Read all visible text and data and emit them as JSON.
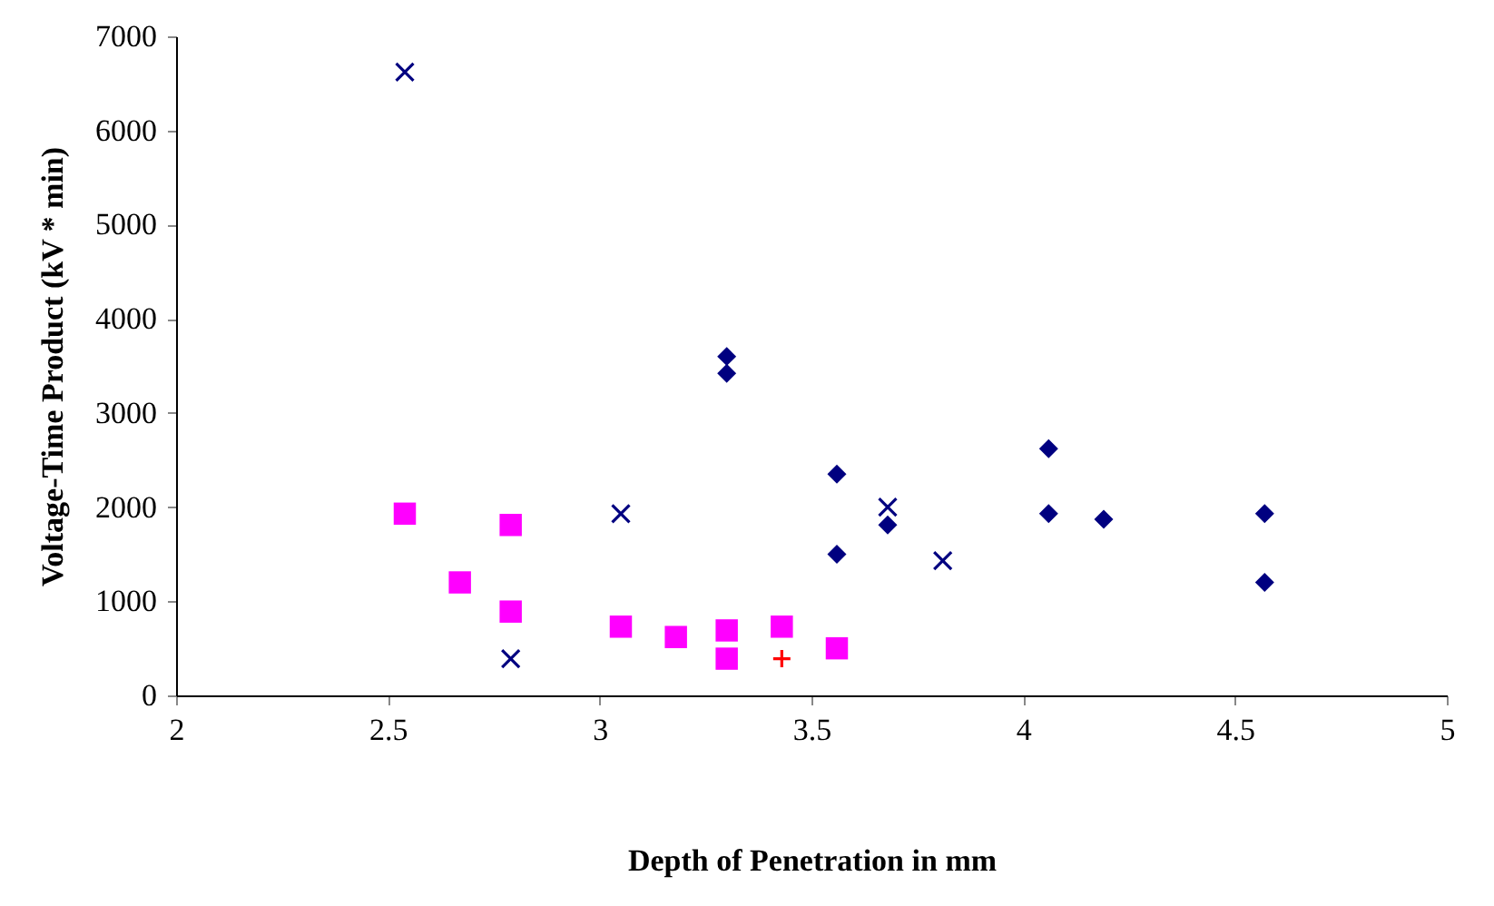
{
  "chart_data": {
    "type": "scatter",
    "xlabel": "Depth of Penetration in mm",
    "ylabel": "Voltage-Time Product (kV * min)",
    "xlim": [
      2,
      5
    ],
    "xticks": [
      2,
      2.5,
      3,
      3.5,
      4,
      4.5,
      5
    ],
    "ylim": [
      0,
      7000
    ],
    "yticks": [
      0,
      1000,
      2000,
      3000,
      4000,
      5000,
      6000,
      7000
    ],
    "grid": false,
    "series": [
      {
        "color": "#000080",
        "marker": "diamond",
        "x": [
          3.3,
          3.3,
          3.56,
          3.56,
          3.68,
          4.06,
          4.06,
          4.19,
          4.57,
          4.57
        ],
        "values": [
          3600,
          3420,
          2350,
          1500,
          1810,
          2620,
          1930,
          1870,
          1930,
          1200
        ]
      },
      {
        "color": "#000080",
        "marker": "cross",
        "x": [
          2.54,
          2.79,
          3.05,
          3.68,
          3.81
        ],
        "values": [
          6620,
          390,
          1930,
          2000,
          1430
        ]
      },
      {
        "color": "#ff00ff",
        "marker": "square",
        "x": [
          2.54,
          2.67,
          2.79,
          2.79,
          3.05,
          3.18,
          3.3,
          3.3,
          3.43,
          3.56
        ],
        "values": [
          1930,
          1200,
          1810,
          890,
          730,
          620,
          690,
          390,
          730,
          500
        ]
      },
      {
        "color": "#ff0000",
        "marker": "plus",
        "x": [
          3.43
        ],
        "values": [
          390
        ]
      }
    ]
  }
}
